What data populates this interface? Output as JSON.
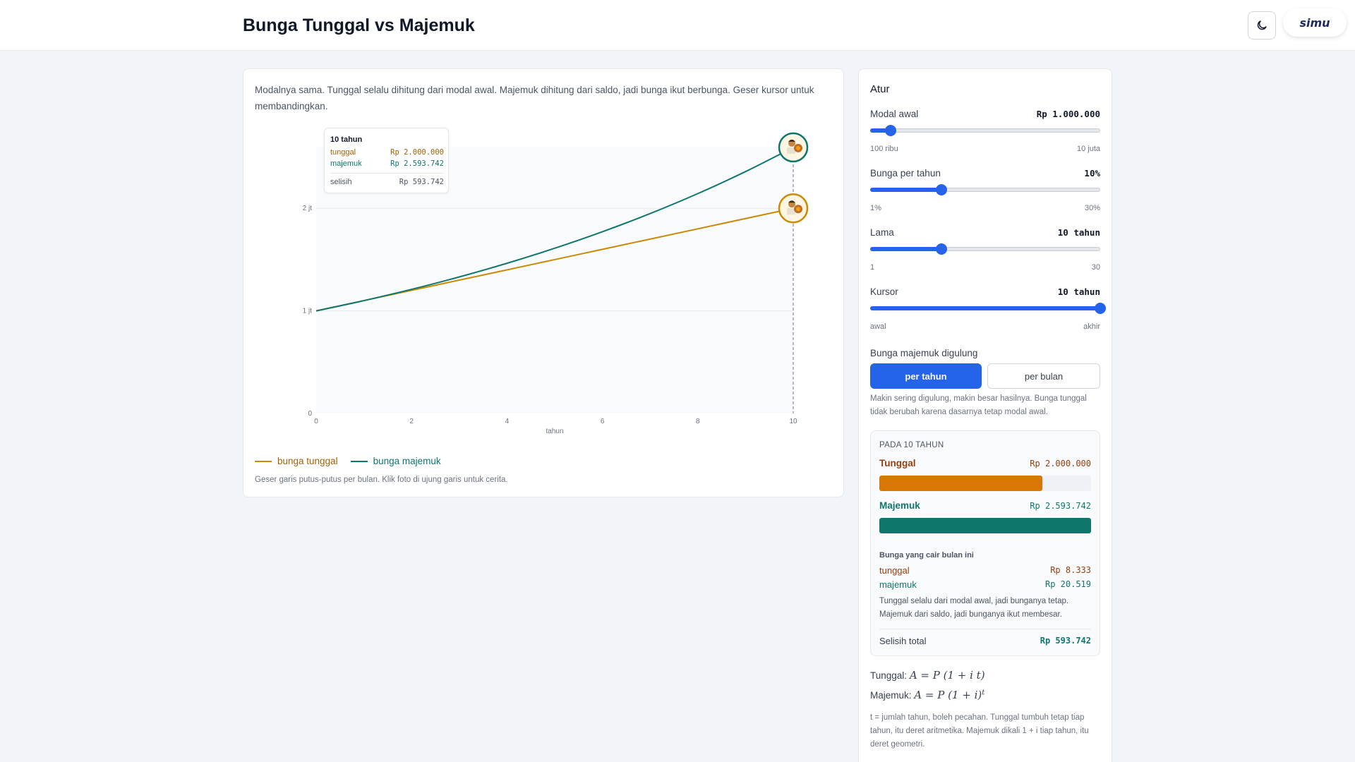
{
  "header": {
    "title": "Bunga Tunggal vs Majemuk",
    "theme_icon": "moon-icon",
    "logo_text": "simu"
  },
  "chart_card": {
    "intro": "Modalnya sama. Tunggal selalu dihitung dari modal awal. Majemuk dihitung dari saldo, jadi bunga ikut berbunga. Geser kursor untuk membandingkan.",
    "tooltip": {
      "title": "10 tahun",
      "tunggal_label": "tunggal",
      "tunggal_value": "Rp 2.000.000",
      "majemuk_label": "majemuk",
      "majemuk_value": "Rp 2.593.742",
      "selisih_label": "selisih",
      "selisih_value": "Rp 593.742"
    },
    "legend": {
      "tunggal": "bunga tunggal",
      "majemuk": "bunga majemuk"
    },
    "hint": "Geser garis putus-putus per bulan. Klik foto di ujung garis untuk cerita."
  },
  "chart_data": {
    "type": "line",
    "xlabel": "tahun",
    "ylabel": "",
    "x_ticks": [
      "0",
      "2",
      "4",
      "6",
      "8",
      "10"
    ],
    "y_ticks": [
      "0",
      "1 jt",
      "2 jt"
    ],
    "xlim": [
      0,
      10
    ],
    "ylim": [
      0,
      2.6
    ],
    "cursor_x": 10,
    "series": [
      {
        "name": "bunga tunggal",
        "color": "#ca8a04",
        "x": [
          0,
          1,
          2,
          3,
          4,
          5,
          6,
          7,
          8,
          9,
          10
        ],
        "y": [
          1.0,
          1.1,
          1.2,
          1.3,
          1.4,
          1.5,
          1.6,
          1.7,
          1.8,
          1.9,
          2.0
        ]
      },
      {
        "name": "bunga majemuk",
        "color": "#0f766e",
        "x": [
          0,
          1,
          2,
          3,
          4,
          5,
          6,
          7,
          8,
          9,
          10
        ],
        "y": [
          1.0,
          1.1,
          1.21,
          1.331,
          1.4641,
          1.6105,
          1.7716,
          1.9487,
          2.1436,
          2.3579,
          2.5937
        ]
      }
    ]
  },
  "panel": {
    "title": "Atur",
    "modal": {
      "label": "Modal awal",
      "value": "Rp 1.000.000",
      "min": "100 ribu",
      "max": "10 juta",
      "level": 0.09
    },
    "bunga": {
      "label": "Bunga per tahun",
      "value": "10%",
      "min": "1%",
      "max": "30%",
      "level": 0.31
    },
    "lama": {
      "label": "Lama",
      "value": "10 tahun",
      "min": "1",
      "max": "30",
      "level": 0.31
    },
    "kursor": {
      "label": "Kursor",
      "value": "10 tahun",
      "min": "awal",
      "max": "akhir",
      "level": 1.0
    },
    "compounding": {
      "label": "Bunga majemuk digulung",
      "option_year": "per tahun",
      "option_month": "per bulan",
      "note": "Makin sering digulung, makin besar hasilnya. Bunga tunggal tidak berubah karena dasarnya tetap modal awal."
    },
    "summary": {
      "title": "PADA 10 TAHUN",
      "tunggal_label": "Tunggal",
      "tunggal_value": "Rp 2.000.000",
      "tunggal_level": 0.771,
      "majemuk_label": "Majemuk",
      "majemuk_value": "Rp 2.593.742",
      "majemuk_level": 1.0,
      "monthly_title": "Bunga yang cair bulan ini",
      "monthly_tunggal_label": "tunggal",
      "monthly_tunggal_value": "Rp 8.333",
      "monthly_majemuk_label": "majemuk",
      "monthly_majemuk_value": "Rp 20.519",
      "note": "Tunggal selalu dari modal awal, jadi bunganya tetap. Majemuk dari saldo, jadi bunganya ikut membesar.",
      "total_label": "Selisih total",
      "total_value": "Rp 593.742"
    },
    "formula_tunggal_label": "Tunggal:",
    "formula_tunggal": "A = P (1 + i t)",
    "formula_majemuk_label": "Majemuk:",
    "formula_majemuk": "A = P (1 + i)",
    "formula_majemuk_exp": "t",
    "formula_note": "t = jumlah tahun, boleh pecahan. Tunggal tumbuh tetap tiap tahun, itu deret aritmetika. Majemuk dikali 1 + i tiap tahun, itu deret geometri."
  },
  "colors": {
    "accent": "#2563eb",
    "tunggal": "#ca8a04",
    "tunggal_bar": "#d97706",
    "majemuk": "#0f766e"
  }
}
